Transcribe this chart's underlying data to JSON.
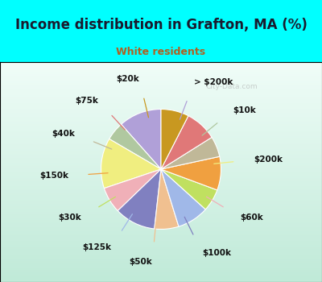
{
  "title": "Income distribution in Grafton, MA (%)",
  "subtitle": "White residents",
  "labels": [
    "> $200k",
    "$10k",
    "$200k",
    "$60k",
    "$100k",
    "$50k",
    "$125k",
    "$30k",
    "$150k",
    "$40k",
    "$75k",
    "$20k"
  ],
  "sizes": [
    11.5,
    5.0,
    13.5,
    7.0,
    11.0,
    6.5,
    8.5,
    6.0,
    9.0,
    5.5,
    8.5,
    7.5
  ],
  "colors": [
    "#b0a0d8",
    "#b0c8a0",
    "#f0ee80",
    "#f0b0b8",
    "#8080c0",
    "#f0c090",
    "#a0b8e8",
    "#c0e060",
    "#f0a040",
    "#c0b898",
    "#e07878",
    "#c89820"
  ],
  "bg_color": "#00ffff",
  "chart_bg_top": "#ffffff",
  "chart_bg_bottom": "#c8eedd",
  "title_color": "#1a1a2e",
  "subtitle_color": "#b06020",
  "watermark": "City-Data.com",
  "label_color": "#111111",
  "label_fontsize": 7.5,
  "title_fontsize": 12,
  "subtitle_fontsize": 9
}
